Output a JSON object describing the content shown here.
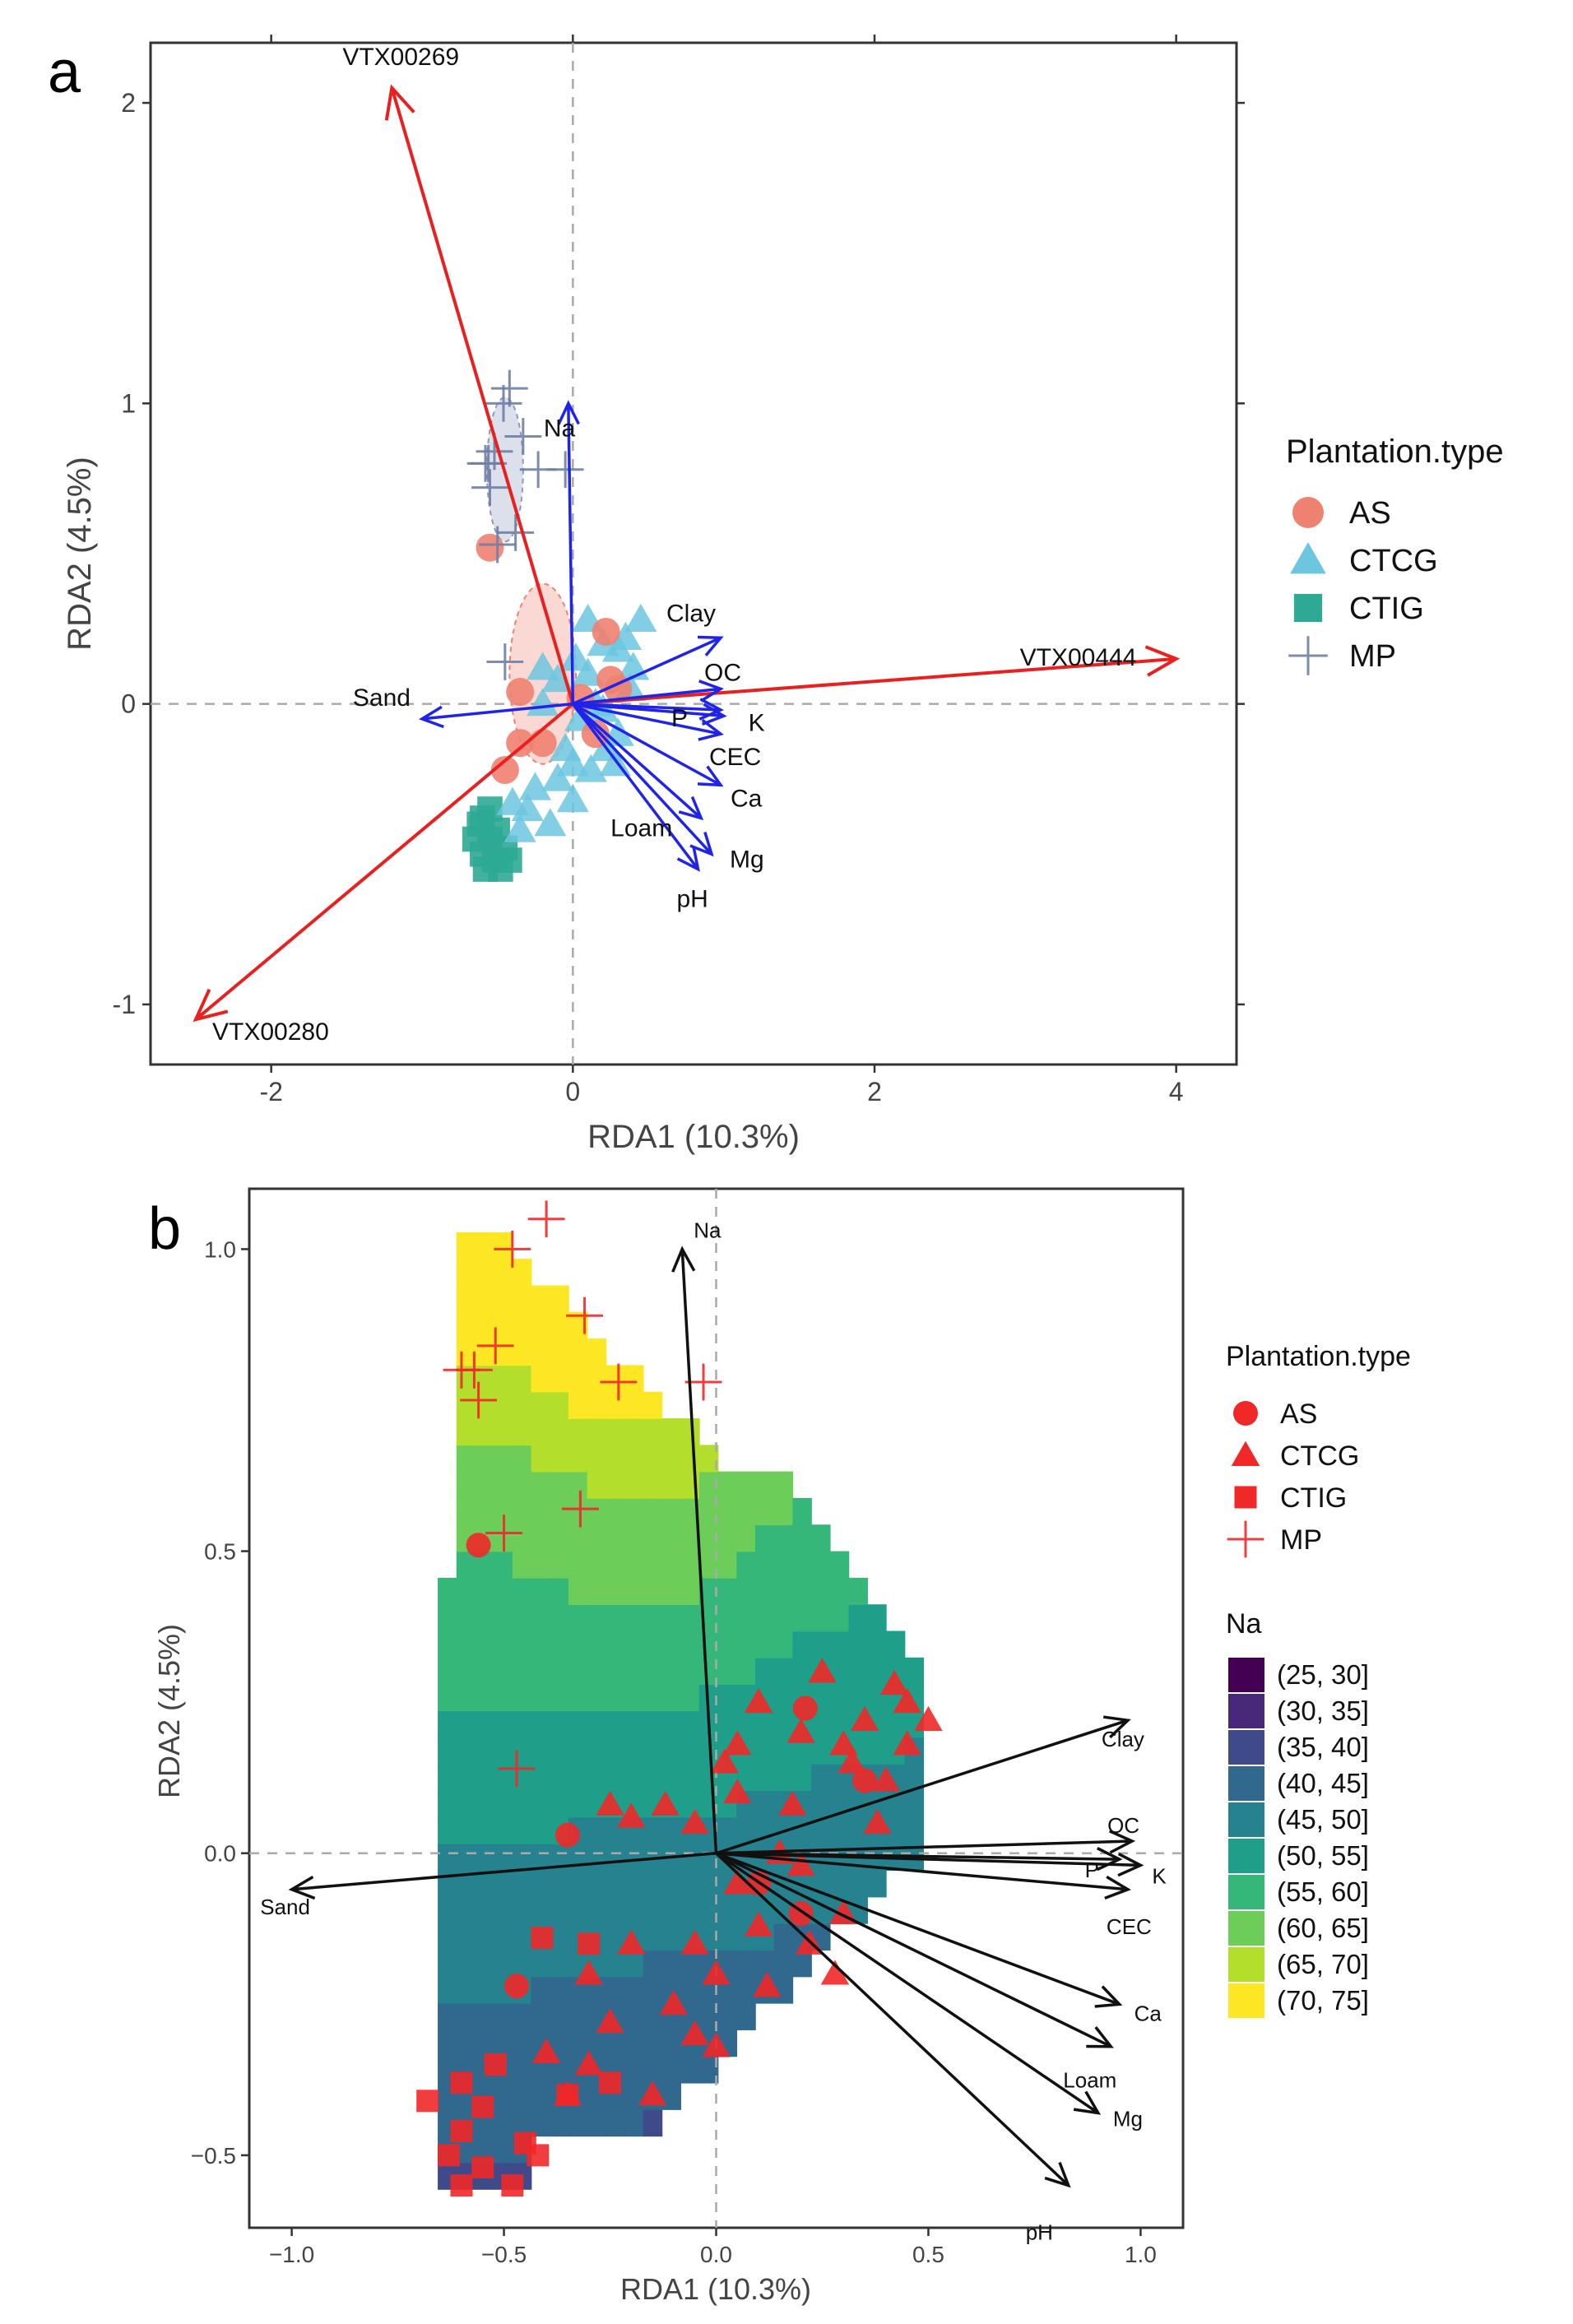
{
  "chart_data": [
    {
      "panel_label": "a",
      "type": "scatter",
      "xlabel": "RDA1 (10.3%)",
      "ylabel": "RDA2 (4.5%)",
      "xlim": [
        -2.8,
        4.4
      ],
      "ylim": [
        -1.2,
        2.2
      ],
      "x_ticks": [
        -2,
        0,
        2,
        4
      ],
      "y_ticks": [
        -1,
        0,
        1,
        2
      ],
      "grid": false,
      "legend": {
        "title": "Plantation.type",
        "position": "right",
        "entries": [
          {
            "label": "AS",
            "shape": "circle",
            "color": "#EE8170"
          },
          {
            "label": "CTCG",
            "shape": "triangle",
            "color": "#6CC6DF"
          },
          {
            "label": "CTIG",
            "shape": "square",
            "color": "#2EAA94"
          },
          {
            "label": "MP",
            "shape": "plus",
            "color": "#6F7FA4"
          }
        ]
      },
      "species_arrows_color": "#E82020",
      "species_arrows": [
        {
          "label": "VTX00269",
          "x": -1.2,
          "y": 2.05
        },
        {
          "label": "VTX00444",
          "x": 4.0,
          "y": 0.15
        },
        {
          "label": "VTX00280",
          "x": -2.5,
          "y": -1.05
        }
      ],
      "env_arrows_color": "#1F24E8",
      "env_arrows": [
        {
          "label": "Na",
          "x": -0.03,
          "y": 1.0
        },
        {
          "label": "Clay",
          "x": 0.98,
          "y": 0.22
        },
        {
          "label": "OC",
          "x": 0.98,
          "y": 0.05
        },
        {
          "label": "P",
          "x": 0.98,
          "y": -0.02
        },
        {
          "label": "K",
          "x": 1.0,
          "y": -0.04
        },
        {
          "label": "CEC",
          "x": 0.98,
          "y": -0.1
        },
        {
          "label": "Ca",
          "x": 0.98,
          "y": -0.27
        },
        {
          "label": "Loam",
          "x": 0.85,
          "y": -0.38
        },
        {
          "label": "Mg",
          "x": 0.92,
          "y": -0.5
        },
        {
          "label": "pH",
          "x": 0.83,
          "y": -0.55
        },
        {
          "label": "Sand",
          "x": -1.0,
          "y": -0.05
        }
      ],
      "series": [
        {
          "name": "AS",
          "points": [
            [
              -0.55,
              0.52
            ],
            [
              0.22,
              0.24
            ],
            [
              0.25,
              0.08
            ],
            [
              -0.35,
              0.04
            ],
            [
              0.3,
              0.05
            ],
            [
              0.15,
              -0.1
            ],
            [
              -0.35,
              -0.13
            ],
            [
              -0.45,
              -0.22
            ],
            [
              -0.2,
              -0.13
            ],
            [
              0.05,
              0.02
            ]
          ]
        },
        {
          "name": "CTCG",
          "points": [
            [
              0.1,
              0.28
            ],
            [
              0.45,
              0.28
            ],
            [
              0.35,
              0.22
            ],
            [
              0.2,
              0.2
            ],
            [
              0.1,
              0.1
            ],
            [
              0.3,
              0.18
            ],
            [
              0.4,
              0.12
            ],
            [
              0.02,
              0.15
            ],
            [
              -0.1,
              0.08
            ],
            [
              -0.2,
              0.0
            ],
            [
              0.05,
              -0.05
            ],
            [
              0.2,
              -0.02
            ],
            [
              0.3,
              -0.1
            ],
            [
              -0.05,
              -0.15
            ],
            [
              0.0,
              -0.2
            ],
            [
              -0.1,
              -0.25
            ],
            [
              -0.25,
              -0.28
            ],
            [
              -0.3,
              -0.35
            ],
            [
              -0.4,
              -0.33
            ],
            [
              0.0,
              -0.32
            ],
            [
              -0.15,
              -0.4
            ],
            [
              -0.35,
              -0.42
            ],
            [
              0.12,
              -0.22
            ],
            [
              0.22,
              -0.15
            ],
            [
              -0.2,
              0.12
            ],
            [
              0.38,
              0.05
            ],
            [
              0.28,
              -0.2
            ],
            [
              0.15,
              0.0
            ]
          ]
        },
        {
          "name": "CTIG",
          "points": [
            [
              -0.62,
              -0.4
            ],
            [
              -0.55,
              -0.45
            ],
            [
              -0.6,
              -0.5
            ],
            [
              -0.52,
              -0.52
            ],
            [
              -0.48,
              -0.55
            ],
            [
              -0.58,
              -0.55
            ],
            [
              -0.45,
              -0.48
            ],
            [
              -0.55,
              -0.35
            ],
            [
              -0.65,
              -0.45
            ],
            [
              -0.5,
              -0.42
            ],
            [
              -0.42,
              -0.52
            ],
            [
              -0.6,
              -0.38
            ]
          ]
        },
        {
          "name": "MP",
          "points": [
            [
              -0.42,
              1.05
            ],
            [
              -0.46,
              1.0
            ],
            [
              -0.58,
              0.8
            ],
            [
              -0.55,
              0.72
            ],
            [
              -0.56,
              0.8
            ],
            [
              -0.52,
              0.84
            ],
            [
              -0.33,
              0.89
            ],
            [
              -0.38,
              0.57
            ],
            [
              -0.5,
              0.53
            ],
            [
              -0.45,
              0.14
            ],
            [
              -0.23,
              0.78
            ],
            [
              -0.05,
              0.78
            ]
          ]
        }
      ],
      "ellipses": [
        {
          "group": "MP",
          "cx": -0.45,
          "cy": 0.78,
          "rx": 0.12,
          "ry": 0.24,
          "color": "#8C99B8"
        },
        {
          "group": "AS",
          "cx": -0.2,
          "cy": 0.1,
          "rx": 0.22,
          "ry": 0.3,
          "color": "#EE8170"
        }
      ]
    },
    {
      "panel_label": "b",
      "type": "scatter",
      "xlabel": "RDA1 (10.3%)",
      "ylabel": "RDA2 (4.5%)",
      "xlim": [
        -1.1,
        1.1
      ],
      "ylim": [
        -0.62,
        1.1
      ],
      "x_ticks": [
        -1.0,
        -0.5,
        0.0,
        0.5,
        1.0
      ],
      "x_tick_labels": [
        "−1.0",
        "−0.5",
        "0.0",
        "0.5",
        "1.0"
      ],
      "y_ticks": [
        -0.5,
        0.0,
        0.5,
        1.0
      ],
      "y_tick_labels": [
        "−0.5",
        "0.0",
        "0.5",
        "1.0"
      ],
      "grid": false,
      "point_color": "#F02828",
      "legend": {
        "title": "Plantation.type",
        "position": "right",
        "entries": [
          {
            "label": "AS",
            "shape": "circle"
          },
          {
            "label": "CTCG",
            "shape": "triangle"
          },
          {
            "label": "CTIG",
            "shape": "square"
          },
          {
            "label": "MP",
            "shape": "plus"
          }
        ]
      },
      "contour_legend": {
        "title": "Na",
        "bins": [
          {
            "label": "(25, 30]",
            "color": "#440154"
          },
          {
            "label": "(30, 35]",
            "color": "#482878"
          },
          {
            "label": "(35, 40]",
            "color": "#3E4A89"
          },
          {
            "label": "(40, 45]",
            "color": "#31688E"
          },
          {
            "label": "(45, 50]",
            "color": "#26828E"
          },
          {
            "label": "(50, 55]",
            "color": "#1F9E89"
          },
          {
            "label": "(55, 60]",
            "color": "#35B779"
          },
          {
            "label": "(60, 65]",
            "color": "#6DCD59"
          },
          {
            "label": "(65, 70]",
            "color": "#B4DE2C"
          },
          {
            "label": "(70, 75]",
            "color": "#FDE725"
          }
        ]
      },
      "env_arrows_color": "#111111",
      "env_arrows": [
        {
          "label": "Na",
          "x": -0.08,
          "y": 1.0
        },
        {
          "label": "Clay",
          "x": 0.97,
          "y": 0.22
        },
        {
          "label": "OC",
          "x": 0.98,
          "y": 0.02
        },
        {
          "label": "P",
          "x": 0.95,
          "y": -0.01
        },
        {
          "label": "K",
          "x": 1.0,
          "y": -0.02
        },
        {
          "label": "CEC",
          "x": 0.97,
          "y": -0.06
        },
        {
          "label": "Ca",
          "x": 0.95,
          "y": -0.25
        },
        {
          "label": "Loam",
          "x": 0.93,
          "y": -0.32
        },
        {
          "label": "Mg",
          "x": 0.9,
          "y": -0.43
        },
        {
          "label": "pH",
          "x": 0.83,
          "y": -0.55
        },
        {
          "label": "Sand",
          "x": -1.0,
          "y": -0.06
        }
      ],
      "series": [
        {
          "name": "AS",
          "points": [
            [
              -0.56,
              0.51
            ],
            [
              0.21,
              0.24
            ],
            [
              -0.35,
              0.03
            ],
            [
              0.35,
              0.12
            ],
            [
              -0.47,
              -0.22
            ],
            [
              0.1,
              -0.05
            ],
            [
              0.2,
              -0.1
            ]
          ]
        },
        {
          "name": "CTCG",
          "points": [
            [
              0.1,
              0.25
            ],
            [
              0.45,
              0.25
            ],
            [
              0.35,
              0.22
            ],
            [
              0.2,
              0.2
            ],
            [
              0.05,
              0.1
            ],
            [
              0.3,
              0.18
            ],
            [
              0.4,
              0.12
            ],
            [
              0.02,
              0.15
            ],
            [
              -0.12,
              0.08
            ],
            [
              -0.2,
              0.06
            ],
            [
              0.05,
              -0.05
            ],
            [
              0.2,
              -0.02
            ],
            [
              0.3,
              -0.1
            ],
            [
              -0.05,
              -0.15
            ],
            [
              0.0,
              -0.2
            ],
            [
              -0.1,
              -0.25
            ],
            [
              -0.25,
              -0.28
            ],
            [
              -0.3,
              -0.35
            ],
            [
              -0.4,
              -0.33
            ],
            [
              0.0,
              -0.32
            ],
            [
              -0.15,
              -0.4
            ],
            [
              -0.35,
              -0.4
            ],
            [
              0.12,
              -0.22
            ],
            [
              0.22,
              -0.15
            ],
            [
              -0.05,
              0.05
            ],
            [
              0.38,
              0.05
            ],
            [
              0.28,
              -0.2
            ],
            [
              0.15,
              0.0
            ],
            [
              0.5,
              0.22
            ],
            [
              -0.25,
              0.08
            ],
            [
              0.25,
              0.3
            ],
            [
              0.42,
              0.28
            ],
            [
              0.1,
              -0.12
            ],
            [
              -0.2,
              -0.15
            ],
            [
              0.32,
              0.15
            ],
            [
              -0.05,
              -0.3
            ],
            [
              0.45,
              0.18
            ],
            [
              -0.3,
              -0.2
            ],
            [
              0.05,
              0.18
            ],
            [
              0.18,
              0.08
            ]
          ]
        },
        {
          "name": "CTIG",
          "points": [
            [
              -0.68,
              -0.41
            ],
            [
              -0.6,
              -0.46
            ],
            [
              -0.63,
              -0.5
            ],
            [
              -0.55,
              -0.52
            ],
            [
              -0.48,
              -0.55
            ],
            [
              -0.6,
              -0.55
            ],
            [
              -0.45,
              -0.48
            ],
            [
              -0.41,
              -0.14
            ],
            [
              -0.3,
              -0.15
            ],
            [
              -0.6,
              -0.38
            ],
            [
              -0.52,
              -0.35
            ],
            [
              -0.35,
              -0.4
            ],
            [
              -0.25,
              -0.38
            ],
            [
              -0.42,
              -0.5
            ],
            [
              -0.55,
              -0.42
            ]
          ]
        },
        {
          "name": "MP",
          "points": [
            [
              -0.4,
              1.05
            ],
            [
              -0.48,
              1.0
            ],
            [
              -0.6,
              0.8
            ],
            [
              -0.56,
              0.75
            ],
            [
              -0.57,
              0.8
            ],
            [
              -0.52,
              0.84
            ],
            [
              -0.31,
              0.89
            ],
            [
              -0.23,
              0.78
            ],
            [
              -0.32,
              0.57
            ],
            [
              -0.5,
              0.53
            ],
            [
              -0.47,
              0.14
            ],
            [
              -0.03,
              0.78
            ]
          ]
        }
      ]
    }
  ]
}
